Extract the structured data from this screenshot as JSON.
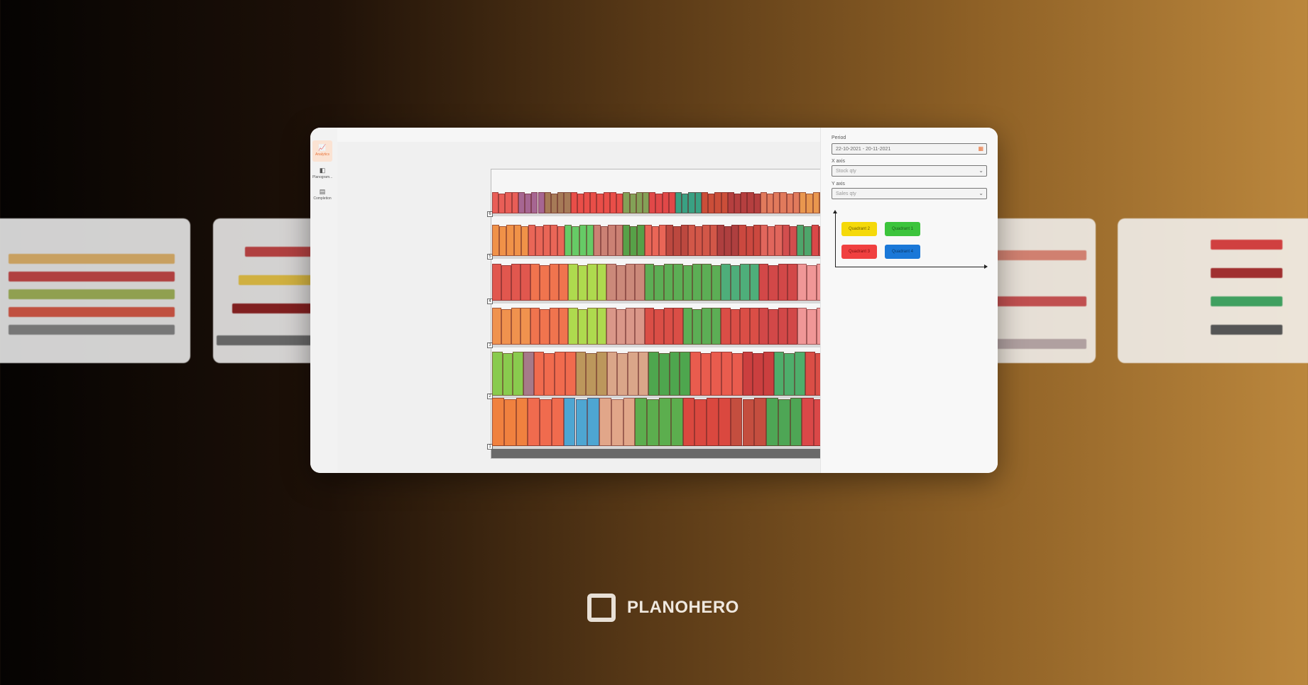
{
  "sidebar": {
    "items": [
      {
        "label": "Analytics",
        "icon": "chart-icon",
        "active": true
      },
      {
        "label": "Planogram...",
        "icon": "planogram-icon"
      },
      {
        "label": "Completion",
        "icon": "table-icon"
      }
    ]
  },
  "planogram": {
    "shelf_numbers": [
      "6",
      "5",
      "4",
      "3",
      "2",
      "1"
    ],
    "shelves": [
      [
        [
          "#e8524a",
          4
        ],
        [
          "#a05a8a",
          4
        ],
        [
          "#a0704a",
          4
        ],
        [
          "#e8403a",
          8
        ],
        [
          "#7a9a4a",
          4
        ],
        [
          "#e03a3a",
          4
        ],
        [
          "#2a9a7a",
          4
        ],
        [
          "#c8402a",
          4
        ],
        [
          "#b03030",
          5
        ],
        [
          "#e07050",
          6
        ],
        [
          "#e89040",
          4
        ]
      ],
      [
        [
          "#f08a3a",
          5
        ],
        [
          "#e85a4a",
          5
        ],
        [
          "#5ac85a",
          4
        ],
        [
          "#c8786a",
          4
        ],
        [
          "#4a9a3a",
          3
        ],
        [
          "#e85a4a",
          3
        ],
        [
          "#b83a30",
          3
        ],
        [
          "#d04a3a",
          4
        ],
        [
          "#a83030",
          3
        ],
        [
          "#c83a30",
          3
        ],
        [
          "#e05a50",
          3
        ],
        [
          "#d04040",
          2
        ],
        [
          "#40a060",
          2
        ],
        [
          "#d83a3a",
          2
        ]
      ],
      [
        [
          "#e04a40",
          4
        ],
        [
          "#f06a40",
          4
        ],
        [
          "#a8d840",
          4
        ],
        [
          "#c88070",
          4
        ],
        [
          "#50a848",
          8
        ],
        [
          "#40a870",
          4
        ],
        [
          "#d03a3a",
          4
        ],
        [
          "#f09090",
          3
        ]
      ],
      [
        [
          "#f08a40",
          4
        ],
        [
          "#f06a40",
          4
        ],
        [
          "#a8d840",
          4
        ],
        [
          "#d89080",
          4
        ],
        [
          "#d84038",
          4
        ],
        [
          "#50a848",
          4
        ],
        [
          "#d84038",
          4
        ],
        [
          "#d03a3a",
          4
        ],
        [
          "#f09090",
          3
        ]
      ],
      [
        [
          "#80c840",
          3
        ],
        [
          "#a07080",
          1
        ],
        [
          "#f06040",
          4
        ],
        [
          "#b89050",
          3
        ],
        [
          "#d8a080",
          4
        ],
        [
          "#40a040",
          4
        ],
        [
          "#e85040",
          5
        ],
        [
          "#c83030",
          3
        ],
        [
          "#40a860",
          3
        ],
        [
          "#d84038",
          2
        ]
      ],
      [
        [
          "#f07830",
          3
        ],
        [
          "#f06040",
          3
        ],
        [
          "#40a0d0",
          3
        ],
        [
          "#e0a080",
          3
        ],
        [
          "#50a840",
          4
        ],
        [
          "#d83a30",
          4
        ],
        [
          "#c04030",
          3
        ],
        [
          "#40a048",
          3
        ],
        [
          "#d83a3a",
          2
        ]
      ]
    ]
  },
  "panel": {
    "period_label": "Period",
    "period_value": "22-10-2021 - 20-11-2021",
    "x_axis_label": "X axis",
    "x_axis_value": "Stock qty",
    "y_axis_label": "Y axis",
    "y_axis_value": "Sales qty",
    "quadrants": [
      {
        "label": "Quadrant 2",
        "color": "#f5d90a"
      },
      {
        "label": "Quadrant 1",
        "color": "#3cc43c"
      },
      {
        "label": "Quadrant 3",
        "color": "#f04040"
      },
      {
        "label": "Quadrant 4",
        "color": "#1a78d8"
      }
    ]
  },
  "brand": {
    "name": "PLANOHERO"
  }
}
